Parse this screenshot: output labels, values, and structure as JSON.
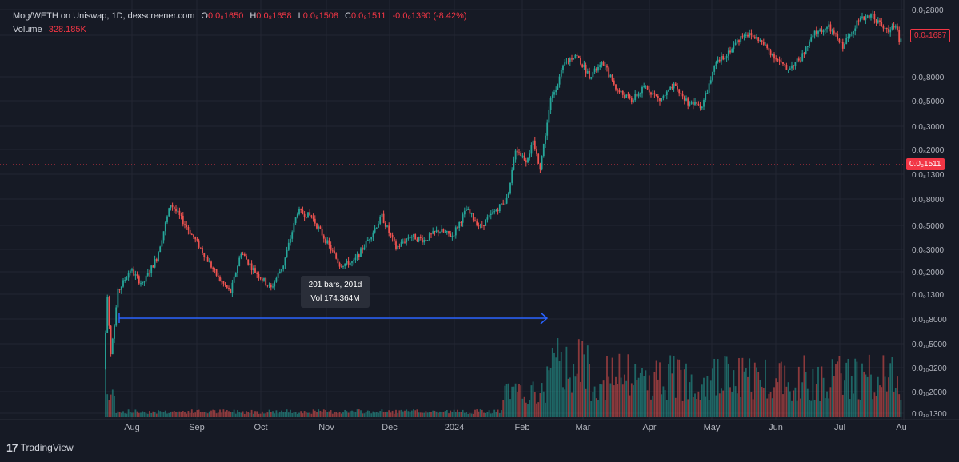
{
  "legend": {
    "title": "Mog/WETH on Uniswap, 1D, dexscreener.com",
    "o_label": "O",
    "o_value": "0.0₈1650",
    "h_label": "H",
    "h_value": "0.0₈1658",
    "l_label": "L",
    "l_value": "0.0₈1508",
    "c_label": "C",
    "c_value": "0.0₈1511",
    "change": "-0.0₉1390 (-8.42%)",
    "volume_label": "Volume",
    "volume_value": "328.185K"
  },
  "tooltip": {
    "line1": "201 bars, 201d",
    "line2": "Vol 174.364M"
  },
  "price_tags": {
    "current": "0.0₈1511",
    "last_high": "0.0₈1687"
  },
  "footer": {
    "brand": "TradingView",
    "logo_glyph": "17"
  },
  "colors": {
    "up": "#26a69a",
    "down": "#ef5350",
    "background": "#161a25",
    "measure": "#2962ff",
    "text": "#d1d4dc",
    "grid": "#232632",
    "price_line": "#f23645"
  },
  "chart_data": {
    "type": "candlestick",
    "title": "Mog/WETH on Uniswap, 1D, dexscreener.com",
    "scale": "log",
    "y_ticks": [
      "0.0₇2800",
      "0.0₈1200",
      "0.0₈8000",
      "0.0₈5000",
      "0.0₈3000",
      "0.0₈2000",
      "0.0₈1300",
      "0.0₉8000",
      "0.0₉5000",
      "0.0₉3000",
      "0.0₉2000",
      "0.0₉1300",
      "0.0₁₀8000",
      "0.0₁₀5000",
      "0.0₁₀3200",
      "0.0₁₀2000",
      "0.0₁₀1300"
    ],
    "x_ticks": [
      "Aug",
      "Sep",
      "Oct",
      "Nov",
      "Dec",
      "2024",
      "Feb",
      "Mar",
      "Apr",
      "May",
      "Jun",
      "Jul",
      "Au"
    ],
    "grid": true,
    "price_path": [
      {
        "d": 0,
        "p": 3e-10
      },
      {
        "d": 2,
        "p": 1.2e-09
      },
      {
        "d": 4,
        "p": 4e-10
      },
      {
        "d": 8,
        "p": 1.3e-09
      },
      {
        "d": 15,
        "p": 2e-09
      },
      {
        "d": 22,
        "p": 1.5e-09
      },
      {
        "d": 30,
        "p": 2.5e-09
      },
      {
        "d": 38,
        "p": 7e-09
      },
      {
        "d": 45,
        "p": 5e-09
      },
      {
        "d": 55,
        "p": 3e-09
      },
      {
        "d": 65,
        "p": 1.7e-09
      },
      {
        "d": 72,
        "p": 1.3e-09
      },
      {
        "d": 78,
        "p": 2.8e-09
      },
      {
        "d": 85,
        "p": 2e-09
      },
      {
        "d": 95,
        "p": 1.4e-09
      },
      {
        "d": 102,
        "p": 2.2e-09
      },
      {
        "d": 110,
        "p": 6e-09
      },
      {
        "d": 118,
        "p": 5.5e-09
      },
      {
        "d": 126,
        "p": 3.5e-09
      },
      {
        "d": 134,
        "p": 2.2e-09
      },
      {
        "d": 142,
        "p": 2.3e-09
      },
      {
        "d": 150,
        "p": 3.5e-09
      },
      {
        "d": 158,
        "p": 5.5e-09
      },
      {
        "d": 166,
        "p": 3e-09
      },
      {
        "d": 174,
        "p": 3.8e-09
      },
      {
        "d": 182,
        "p": 3.5e-09
      },
      {
        "d": 190,
        "p": 4.2e-09
      },
      {
        "d": 198,
        "p": 3.8e-09
      },
      {
        "d": 206,
        "p": 6.2e-09
      },
      {
        "d": 214,
        "p": 4.5e-09
      },
      {
        "d": 222,
        "p": 6e-09
      },
      {
        "d": 230,
        "p": 8e-09
      },
      {
        "d": 234,
        "p": 2e-08
      },
      {
        "d": 240,
        "p": 1.6e-08
      },
      {
        "d": 244,
        "p": 2.2e-08
      },
      {
        "d": 248,
        "p": 1.4e-08
      },
      {
        "d": 254,
        "p": 5e-08
      },
      {
        "d": 262,
        "p": 1e-07
      },
      {
        "d": 268,
        "p": 1.2e-07
      },
      {
        "d": 276,
        "p": 8e-08
      },
      {
        "d": 284,
        "p": 1e-07
      },
      {
        "d": 292,
        "p": 6e-08
      },
      {
        "d": 300,
        "p": 5e-08
      },
      {
        "d": 308,
        "p": 6.5e-08
      },
      {
        "d": 316,
        "p": 5e-08
      },
      {
        "d": 324,
        "p": 6.5e-08
      },
      {
        "d": 332,
        "p": 4.8e-08
      },
      {
        "d": 340,
        "p": 4.5e-08
      },
      {
        "d": 348,
        "p": 1e-07
      },
      {
        "d": 356,
        "p": 1.3e-07
      },
      {
        "d": 364,
        "p": 1.8e-07
      },
      {
        "d": 372,
        "p": 1.6e-07
      },
      {
        "d": 380,
        "p": 1.2e-07
      },
      {
        "d": 388,
        "p": 9e-08
      },
      {
        "d": 396,
        "p": 1.1e-07
      },
      {
        "d": 404,
        "p": 1.8e-07
      },
      {
        "d": 412,
        "p": 2e-07
      },
      {
        "d": 420,
        "p": 1.4e-07
      },
      {
        "d": 428,
        "p": 2.2e-07
      },
      {
        "d": 436,
        "p": 2.6e-07
      },
      {
        "d": 444,
        "p": 1.9e-07
      },
      {
        "d": 450,
        "p": 2e-07
      },
      {
        "d": 452,
        "p": 1.6e-07
      }
    ],
    "measure": {
      "bars": 201,
      "days": 201,
      "volume": "174.364M"
    },
    "current_price": "0.0₈1511"
  }
}
